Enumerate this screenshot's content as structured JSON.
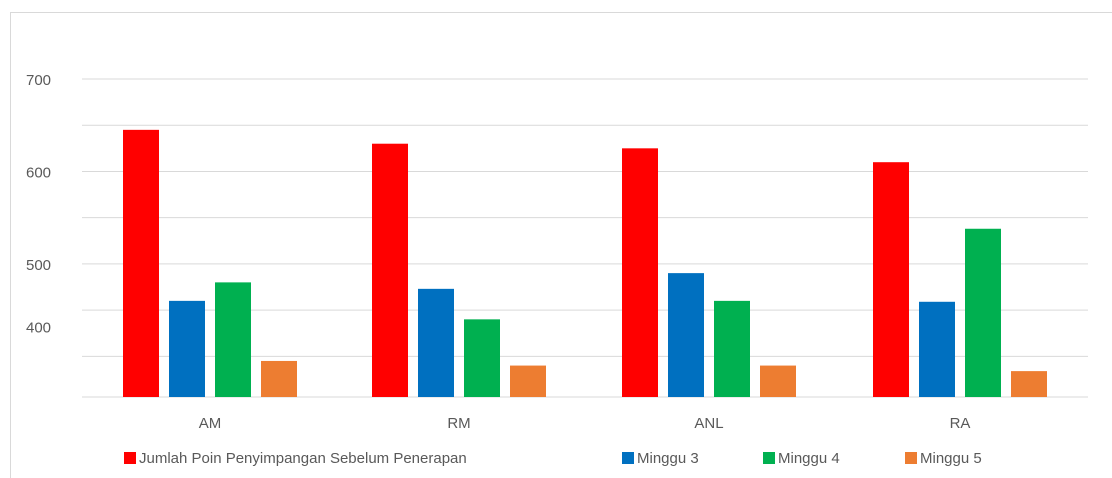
{
  "chart_data": {
    "type": "bar",
    "categories": [
      "AM",
      "RM",
      "ANL",
      "RA"
    ],
    "series": [
      {
        "name": "Jumlah Poin Penyimpangan Sebelum Penerapan",
        "color": "#ff0000",
        "values": [
          645,
          630,
          625,
          610
        ]
      },
      {
        "name": "Minggu 3",
        "color": "#0070c0",
        "values": [
          460,
          473,
          490,
          459
        ]
      },
      {
        "name": "Minggu 4",
        "color": "#00b050",
        "values": [
          480,
          440,
          460,
          538
        ]
      },
      {
        "name": "Minggu 5",
        "color": "#ed7d31",
        "values": [
          395,
          390,
          390,
          384
        ]
      }
    ],
    "yticks": [
      "700",
      "600",
      "500",
      "400"
    ],
    "ylim": [
      356,
      700
    ],
    "grid": true,
    "legend_position": "bottom",
    "title": "",
    "xlabel": "",
    "ylabel": ""
  }
}
